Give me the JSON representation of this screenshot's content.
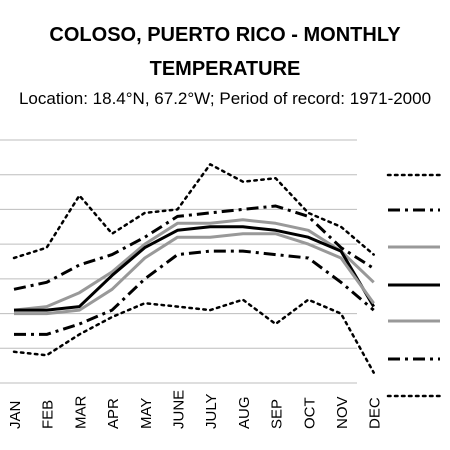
{
  "chart_data": {
    "type": "line",
    "title_line1": "COLOSO, PUERTO RICO - MONTHLY",
    "title_line2": "TEMPERATURE",
    "subtitle": "Location: 18.4°N, 67.2°W; Period of record: 1971-2000",
    "categories": [
      "JAN",
      "FEB",
      "MAR",
      "APR",
      "MAY",
      "JUNE",
      "JULY",
      "AUG",
      "SEP",
      "OCT",
      "NOV",
      "DEC"
    ],
    "ylim": [
      0,
      7
    ],
    "grid": true,
    "series": [
      {
        "style": "dotted",
        "color": "#000000",
        "values": [
          3.6,
          3.9,
          5.4,
          4.3,
          4.9,
          5.0,
          6.3,
          5.8,
          5.9,
          4.9,
          4.5,
          3.7
        ]
      },
      {
        "style": "dashdot",
        "color": "#000000",
        "values": [
          2.7,
          2.9,
          3.4,
          3.7,
          4.2,
          4.8,
          4.9,
          5.0,
          5.1,
          4.8,
          3.9,
          3.3
        ]
      },
      {
        "style": "solid",
        "color": "#999999",
        "values": [
          2.1,
          2.2,
          2.6,
          3.2,
          4.0,
          4.6,
          4.6,
          4.7,
          4.6,
          4.4,
          3.8,
          2.9
        ]
      },
      {
        "style": "solid",
        "color": "#000000",
        "values": [
          2.1,
          2.1,
          2.2,
          3.1,
          3.9,
          4.4,
          4.5,
          4.5,
          4.4,
          4.2,
          3.8,
          2.2
        ]
      },
      {
        "style": "solid",
        "color": "#999999",
        "values": [
          2.0,
          2.0,
          2.1,
          2.7,
          3.6,
          4.2,
          4.2,
          4.3,
          4.3,
          4.0,
          3.6,
          2.3
        ]
      },
      {
        "style": "dashdot",
        "color": "#000000",
        "values": [
          1.4,
          1.4,
          1.7,
          2.1,
          3.0,
          3.7,
          3.8,
          3.8,
          3.7,
          3.6,
          2.9,
          2.1
        ]
      },
      {
        "style": "dotted",
        "color": "#000000",
        "values": [
          0.9,
          0.8,
          1.4,
          1.9,
          2.3,
          2.2,
          2.1,
          2.4,
          1.7,
          2.4,
          2.0,
          0.3
        ]
      }
    ]
  }
}
